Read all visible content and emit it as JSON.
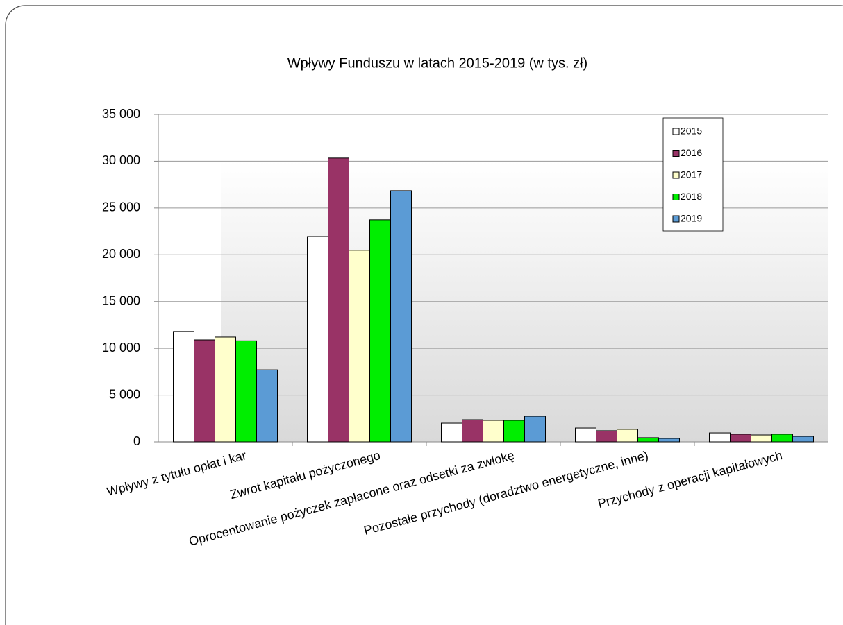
{
  "chart_data": {
    "type": "bar",
    "title": "Wpływy Funduszu w latach 2015-2019 (w tys. zł)",
    "categories": [
      "Wpływy z tytułu opłat i kar",
      "Zwrot kapitału pożyczonego",
      "Oprocentowanie pożyczek  zapłacone oraz odsetki za zwłokę",
      "Pozostałe przychody  (doradztwo energetyczne, inne)",
      "Przychody z operacji kapitałowych"
    ],
    "series": [
      {
        "name": "2015",
        "color": "#ffffff",
        "values": [
          11800,
          21950,
          2000,
          1480,
          960
        ]
      },
      {
        "name": "2016",
        "color": "#993366",
        "values": [
          10900,
          30340,
          2370,
          1190,
          820
        ]
      },
      {
        "name": "2017",
        "color": "#ffffcc",
        "values": [
          11200,
          20480,
          2300,
          1340,
          740
        ]
      },
      {
        "name": "2018",
        "color": "#00ee00",
        "values": [
          10800,
          23740,
          2300,
          450,
          820
        ]
      },
      {
        "name": "2019",
        "color": "#5b9bd5",
        "values": [
          7700,
          26850,
          2740,
          370,
          590
        ]
      }
    ],
    "ylim": [
      0,
      35000
    ],
    "yticks": [
      0,
      {
        "value": 5000,
        "label": "5 000"
      },
      {
        "value": 10000,
        "label": "10 000"
      },
      {
        "value": 15000,
        "label": "15 000"
      },
      {
        "value": 20000,
        "label": "20 000"
      },
      {
        "value": 25000,
        "label": "25 000"
      },
      {
        "value": 30000,
        "label": "30 000"
      },
      {
        "value": 35000,
        "label": "35 000"
      }
    ],
    "grid": true,
    "legend": "upper right"
  }
}
